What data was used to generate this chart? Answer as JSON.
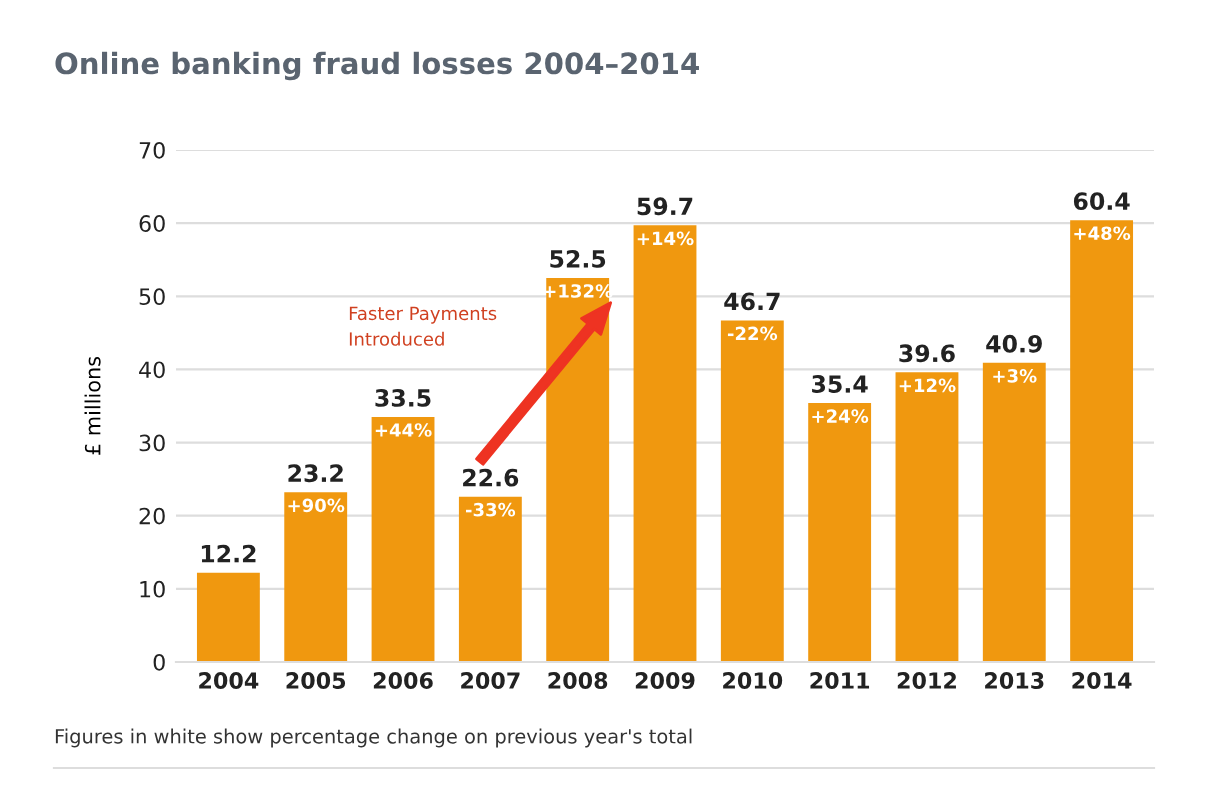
{
  "chart_data": {
    "type": "bar",
    "title": "Online banking fraud losses 2004–2014",
    "ylabel": "£ millions",
    "categories": [
      "2004",
      "2005",
      "2006",
      "2007",
      "2008",
      "2009",
      "2010",
      "2011",
      "2012",
      "2013",
      "2014"
    ],
    "values": [
      12.2,
      23.2,
      33.5,
      22.6,
      52.5,
      59.7,
      46.7,
      35.4,
      39.6,
      40.9,
      60.4
    ],
    "color": "#f0980f",
    "data_labels": true,
    "ylim": [
      0,
      70
    ],
    "yticks": [
      0,
      10,
      20,
      30,
      40,
      50,
      60,
      70
    ],
    "grid": "y",
    "annotations": [
      {
        "text": "+90%",
        "x": "2005",
        "y": 23.2
      },
      {
        "text": "+44%",
        "x": "2006",
        "y": 33.5
      },
      {
        "text": "-33%",
        "x": "2007",
        "y": 22.6
      },
      {
        "text": "+132%",
        "x": "2008",
        "y": 52.5
      },
      {
        "text": "+14%",
        "x": "2009",
        "y": 59.7
      },
      {
        "text": "-22%",
        "x": "2010",
        "y": 46.7
      },
      {
        "text": "+24%",
        "x": "2011",
        "y": 35.4
      },
      {
        "text": "+12%",
        "x": "2012",
        "y": 39.6
      },
      {
        "text": "+3%",
        "x": "2013",
        "y": 40.9
      },
      {
        "text": "+48%",
        "x": "2014",
        "y": 60.4
      },
      "Faster Payments\nIntroduced",
      "Figures in white show percentage change on previous year's total"
    ]
  }
}
